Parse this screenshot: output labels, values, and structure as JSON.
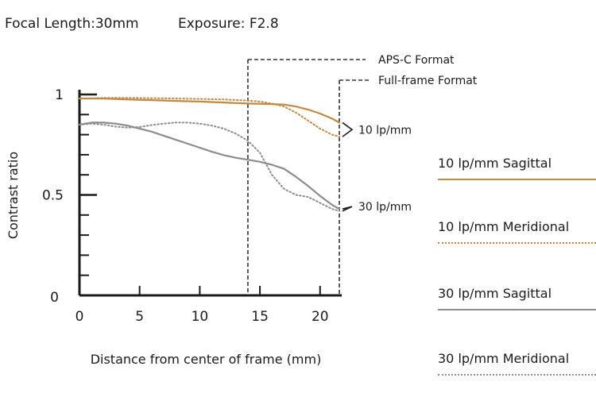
{
  "header": {
    "focal_length": "Focal Length:30mm",
    "exposure": "Exposure: F2.8"
  },
  "chart_data": {
    "type": "line",
    "xlabel": "Distance from center of frame (mm)",
    "ylabel": "Contrast ratio",
    "xlim": [
      0,
      21.6
    ],
    "ylim": [
      0,
      1
    ],
    "x_ticks": [
      0,
      5,
      10,
      15,
      20
    ],
    "y_ticks": [
      0,
      0.5,
      1
    ],
    "y_minor_ticks": [
      0.1,
      0.2,
      0.3,
      0.4,
      0.6,
      0.7,
      0.8,
      0.9
    ],
    "grid": false,
    "legend_position": "right",
    "series": [
      {
        "name": "10 lp/mm Sagittal",
        "color": "#c08a45",
        "style": "solid",
        "x": [
          0,
          2,
          4,
          6,
          8,
          10,
          12,
          14,
          16,
          17,
          18,
          19,
          20,
          21,
          21.6
        ],
        "y": [
          0.98,
          0.98,
          0.975,
          0.972,
          0.968,
          0.965,
          0.96,
          0.955,
          0.952,
          0.95,
          0.94,
          0.925,
          0.905,
          0.88,
          0.86
        ]
      },
      {
        "name": "10 lp/mm Meridional",
        "color": "#c08a45",
        "style": "dotted",
        "x": [
          0,
          2,
          4,
          6,
          8,
          10,
          12,
          14,
          15,
          16,
          17,
          18,
          19,
          20,
          21,
          21.6
        ],
        "y": [
          0.98,
          0.983,
          0.983,
          0.982,
          0.98,
          0.978,
          0.975,
          0.97,
          0.965,
          0.955,
          0.94,
          0.91,
          0.87,
          0.83,
          0.8,
          0.79
        ]
      },
      {
        "name": "30 lp/mm Sagittal",
        "color": "#8c8c8c",
        "style": "solid",
        "x": [
          0,
          1,
          2,
          3,
          4,
          5,
          6,
          7,
          8,
          9,
          10,
          11,
          12,
          13,
          14,
          15,
          16,
          17,
          18,
          19,
          20,
          21,
          21.6
        ],
        "y": [
          0.85,
          0.86,
          0.86,
          0.855,
          0.845,
          0.83,
          0.815,
          0.795,
          0.775,
          0.755,
          0.735,
          0.715,
          0.698,
          0.685,
          0.675,
          0.665,
          0.65,
          0.63,
          0.59,
          0.545,
          0.495,
          0.45,
          0.43
        ]
      },
      {
        "name": "30 lp/mm Meridional",
        "color": "#8c8c8c",
        "style": "dotted",
        "x": [
          0,
          1,
          2,
          3,
          4,
          5,
          6,
          7,
          8,
          9,
          10,
          11,
          12,
          13,
          14,
          15,
          16,
          17,
          18,
          19,
          20,
          21,
          21.6
        ],
        "y": [
          0.85,
          0.855,
          0.85,
          0.84,
          0.835,
          0.838,
          0.848,
          0.855,
          0.86,
          0.86,
          0.855,
          0.845,
          0.83,
          0.805,
          0.77,
          0.71,
          0.6,
          0.53,
          0.5,
          0.49,
          0.46,
          0.43,
          0.42
        ]
      }
    ],
    "annotations": [
      {
        "label": "APS-C Format",
        "x": 14
      },
      {
        "label": "Full-frame Format",
        "x": 21.6
      },
      {
        "label": "10 lp/mm",
        "target": "10 lp/mm"
      },
      {
        "label": "30 lp/mm",
        "target": "30 lp/mm"
      }
    ]
  }
}
